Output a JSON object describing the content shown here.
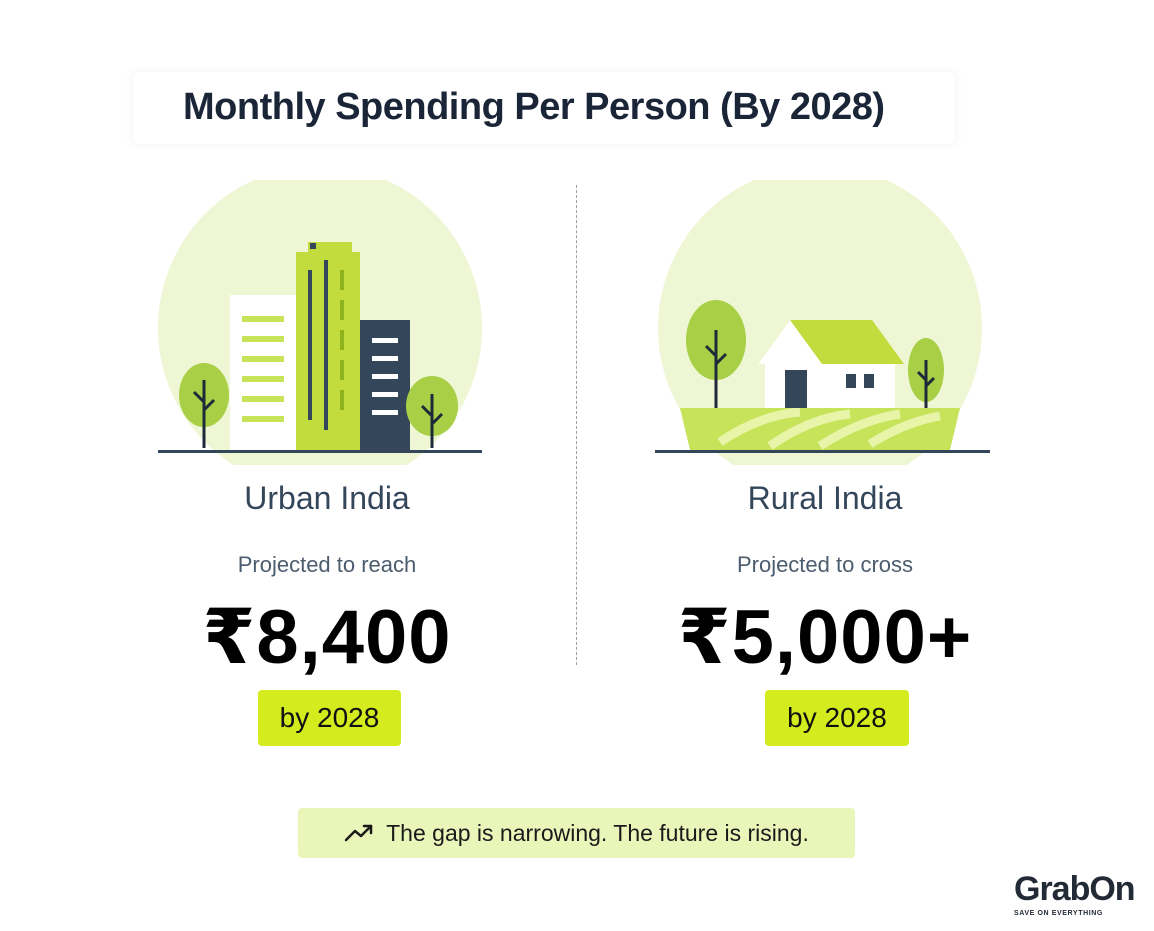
{
  "title": "Monthly Spending Per Person (By 2028)",
  "urban": {
    "name": "Urban India",
    "subtitle": "Projected to reach",
    "value": "₹8,400",
    "badge": "by 2028"
  },
  "rural": {
    "name": "Rural India",
    "subtitle": "Projected to cross",
    "value": "₹5,000+",
    "badge": "by 2028"
  },
  "footer": {
    "icon": "trending-up-icon",
    "text": "The gap is narrowing. The future is rising."
  },
  "logo": {
    "word": "GrabOn",
    "tagline": "SAVE ON EVERYTHING"
  },
  "colors": {
    "accent": "#d4ec1e",
    "accent_light": "#eaf5b9",
    "dark": "#34465a",
    "circle": "#eef6d4"
  }
}
